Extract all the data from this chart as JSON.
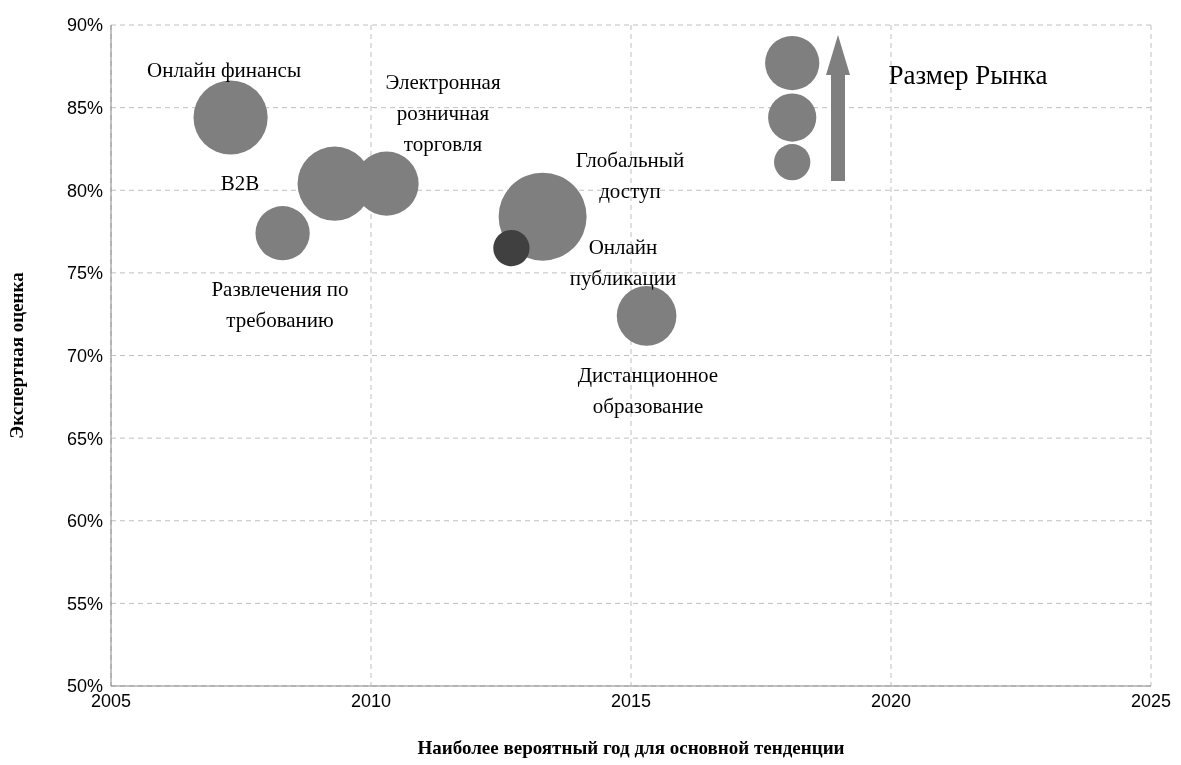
{
  "chart_data": {
    "type": "bubble",
    "xlabel": "Наиболее вероятный год для основной тенденции",
    "ylabel": "Экспертная оценка",
    "x": [
      2007.3,
      2008.3,
      2009.3,
      2010.3,
      2013.3,
      2012.7,
      2015.3,
      2018.1,
      2018.1,
      2018.1
    ],
    "values": [
      84.4,
      77.4,
      80.4,
      80.4,
      78.4,
      76.5,
      72.4,
      87.7,
      84.4,
      81.7
    ],
    "sizes": [
      0.71,
      0.38,
      0.71,
      0.53,
      1,
      0.17,
      0.46,
      0.38,
      0.3,
      0.17
    ],
    "colors": [
      "#7f7f7f",
      "#7f7f7f",
      "#7f7f7f",
      "#7f7f7f",
      "#7f7f7f",
      "#404040",
      "#7f7f7f",
      "#7f7f7f",
      "#7f7f7f",
      "#7f7f7f"
    ],
    "xlim": [
      2005,
      2025
    ],
    "xticks": [
      2005,
      2010,
      2015,
      2020,
      2025
    ],
    "ylim": [
      50,
      90
    ],
    "yticks": [
      {
        "value": 50,
        "label": "50%"
      },
      {
        "value": 55,
        "label": "55%"
      },
      {
        "value": 60,
        "label": "60%"
      },
      {
        "value": 65,
        "label": "65%"
      },
      {
        "value": 70,
        "label": "70%"
      },
      {
        "value": 75,
        "label": "75%"
      },
      {
        "value": 80,
        "label": "80%"
      },
      {
        "value": 85,
        "label": "85%"
      },
      {
        "value": 90,
        "label": "90%"
      }
    ],
    "grid": true,
    "annotations": [
      "Онлайн финансы",
      "B2B",
      "Развлечения по\nтребованию",
      "Электронная\nрозничная\nторговля",
      "Глобальный\nдоступ",
      "Онлайн\nпубликации",
      "Дистанционное\nобразование",
      "Размер Рынка"
    ]
  }
}
